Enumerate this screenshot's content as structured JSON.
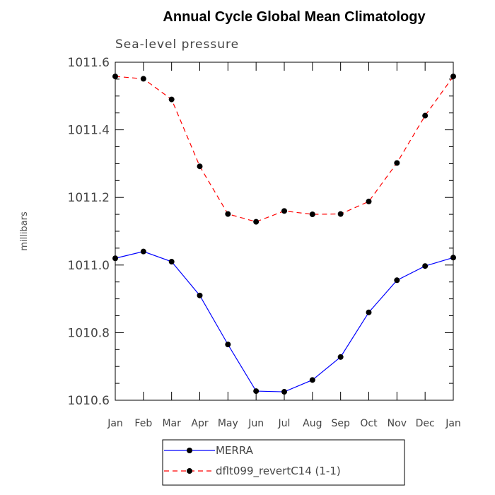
{
  "chart_data": {
    "type": "line",
    "title": "Annual Cycle Global Mean Climatology",
    "subtitle": "Sea-level pressure",
    "xlabel": "",
    "ylabel": "millibars",
    "categories": [
      "Jan",
      "Feb",
      "Mar",
      "Apr",
      "May",
      "Jun",
      "Jul",
      "Aug",
      "Sep",
      "Oct",
      "Nov",
      "Dec",
      "Jan"
    ],
    "ylim": [
      1010.6,
      1011.6
    ],
    "yticks": [
      "1010.6",
      "1010.8",
      "1011.0",
      "1011.2",
      "1011.4",
      "1011.6"
    ],
    "grid": false,
    "legend_position": "bottom",
    "series": [
      {
        "name": "MERRA",
        "color": "#0000ff",
        "dash": "solid",
        "values": [
          1011.02,
          1011.04,
          1011.01,
          1010.91,
          1010.765,
          1010.627,
          1010.625,
          1010.66,
          1010.728,
          1010.86,
          1010.955,
          1010.997,
          1011.022
        ]
      },
      {
        "name": "dflt099_revertC14 (1-1)",
        "color": "#ff0000",
        "dash": "dashed",
        "values": [
          1011.558,
          1011.551,
          1011.49,
          1011.292,
          1011.151,
          1011.128,
          1011.16,
          1011.15,
          1011.151,
          1011.188,
          1011.302,
          1011.442,
          1011.558
        ]
      }
    ]
  }
}
